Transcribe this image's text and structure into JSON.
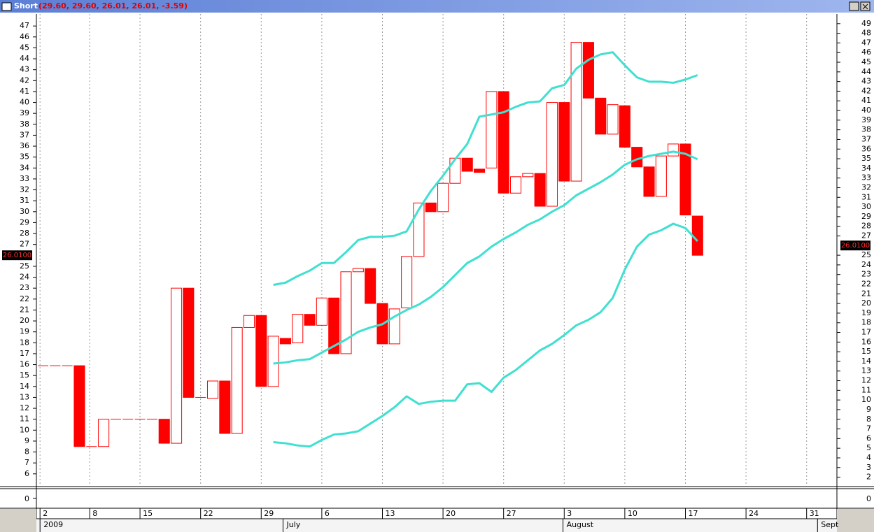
{
  "chart_data": {
    "type": "candlestick",
    "title": "Short",
    "subtitle": "(29.60, 29.60, 26.01, 26.01, -3.59)",
    "open": [
      15.9,
      15.9,
      15.9,
      15.9,
      8.5,
      8.5,
      11,
      11,
      11,
      11,
      11,
      8.8,
      23,
      13,
      12.9,
      14.5,
      9.7,
      19.4,
      20.5,
      14,
      18.4,
      18,
      20.6,
      19.6,
      22.1,
      17,
      24.5,
      24.8,
      21.6,
      17.9,
      21.2,
      25.9,
      30.8,
      30,
      32.6,
      34.9,
      33.9,
      34,
      41,
      31.7,
      33.2,
      33.5,
      30.5,
      40,
      32.8,
      45.5,
      40.4,
      37.1,
      39.7,
      35.9,
      34.1,
      31.4,
      35.1,
      36.2,
      29.6
    ],
    "close": [
      15.9,
      15.9,
      15.9,
      8.5,
      8.5,
      11,
      11,
      11,
      11,
      11,
      8.8,
      23,
      13,
      13,
      14.5,
      9.7,
      19.4,
      20.5,
      14,
      18.6,
      17.9,
      20.6,
      19.6,
      22.1,
      17,
      24.5,
      24.8,
      21.6,
      17.9,
      21.1,
      25.9,
      30.8,
      30,
      32.6,
      34.9,
      33.7,
      33.6,
      41,
      31.7,
      33.2,
      33.5,
      30.5,
      40,
      32.8,
      45.5,
      40.4,
      37.1,
      39.8,
      35.9,
      34.1,
      31.4,
      35.1,
      36.2,
      29.7,
      26.01
    ],
    "up_color": "#ffffff",
    "down_color": "#ff0000",
    "outline_color": "#ff0000",
    "bands": [
      {
        "color": "#40e0d0",
        "values": [
          null,
          null,
          null,
          null,
          null,
          null,
          null,
          null,
          null,
          null,
          null,
          null,
          null,
          null,
          null,
          null,
          null,
          null,
          null,
          23.3,
          23.5,
          24.1,
          24.6,
          25.3,
          25.3,
          26.3,
          27.4,
          27.7,
          27.7,
          27.8,
          28.2,
          30.2,
          31.9,
          33.3,
          34.8,
          36.2,
          38.7,
          38.9,
          39.1,
          39.6,
          40,
          40.1,
          41.3,
          41.6,
          43.1,
          43.9,
          44.4,
          44.6,
          43.4,
          42.3,
          41.9,
          41.9,
          41.8,
          42.1,
          42.5
        ]
      },
      {
        "color": "#40e0d0",
        "values": [
          null,
          null,
          null,
          null,
          null,
          null,
          null,
          null,
          null,
          null,
          null,
          null,
          null,
          null,
          null,
          null,
          null,
          null,
          null,
          16.1,
          16.2,
          16.4,
          16.5,
          17.1,
          17.7,
          18.3,
          19,
          19.4,
          19.7,
          20.4,
          21,
          21.5,
          22.2,
          23.1,
          24.2,
          25.3,
          25.9,
          26.8,
          27.5,
          28.1,
          28.8,
          29.3,
          30,
          30.6,
          31.5,
          32.1,
          32.7,
          33.4,
          34.3,
          34.8,
          35.1,
          35.3,
          35.5,
          35.3,
          34.8
        ]
      },
      {
        "color": "#40e0d0",
        "values": [
          null,
          null,
          null,
          null,
          null,
          null,
          null,
          null,
          null,
          null,
          null,
          null,
          null,
          null,
          null,
          null,
          null,
          null,
          null,
          8.9,
          8.8,
          8.6,
          8.5,
          9.1,
          9.6,
          9.7,
          9.9,
          10.6,
          11.3,
          12.1,
          13.1,
          12.4,
          12.6,
          12.7,
          12.7,
          14.2,
          14.3,
          13.5,
          14.8,
          15.5,
          16.4,
          17.3,
          17.9,
          18.7,
          19.6,
          20.1,
          20.8,
          22.1,
          24.7,
          26.8,
          27.9,
          28.3,
          28.9,
          28.5,
          27.3
        ]
      }
    ],
    "xlim": [
      -0.55,
      65.5
    ],
    "xticks": [
      {
        "value": -0.25,
        "label": "2"
      },
      {
        "value": 3.85,
        "label": "8"
      },
      {
        "value": 8,
        "label": "15"
      },
      {
        "value": 13,
        "label": "22"
      },
      {
        "value": 18,
        "label": "29"
      },
      {
        "value": 23,
        "label": "6"
      },
      {
        "value": 28,
        "label": "13"
      },
      {
        "value": 33,
        "label": "20"
      },
      {
        "value": 38,
        "label": "27"
      },
      {
        "value": 43,
        "label": "3"
      },
      {
        "value": 48,
        "label": "10"
      },
      {
        "value": 53,
        "label": "17"
      },
      {
        "value": 58,
        "label": "24"
      },
      {
        "value": 63,
        "label": "31"
      }
    ],
    "xticks2": [
      {
        "value": -0.25,
        "label": "2009"
      },
      {
        "value": 19.8,
        "label": "July"
      },
      {
        "value": 42.9,
        "label": "August"
      },
      {
        "value": 63.9,
        "label": "Sept"
      }
    ],
    "ylim": [
      4.9,
      48.1
    ],
    "yticks": [
      6,
      7,
      8,
      9,
      10,
      11,
      12,
      13,
      14,
      15,
      16,
      17,
      18,
      19,
      20,
      21,
      22,
      23,
      24,
      25,
      27,
      28,
      29,
      30,
      31,
      32,
      33,
      34,
      35,
      36,
      37,
      38,
      39,
      40,
      41,
      42,
      43,
      44,
      45,
      46,
      47
    ],
    "y2lim": [
      1.1,
      50
    ],
    "y2ticks": [
      2,
      3,
      4,
      5,
      6,
      7,
      8,
      9,
      10,
      11,
      12,
      13,
      14,
      15,
      16,
      17,
      18,
      19,
      20,
      21,
      22,
      23,
      24,
      25,
      27,
      28,
      29,
      30,
      31,
      32,
      33,
      34,
      35,
      36,
      37,
      38,
      39,
      40,
      41,
      42,
      43,
      44,
      45,
      46,
      47,
      48,
      49
    ],
    "last_value": {
      "value": 26.01,
      "label": "26.0100"
    },
    "lower_yticks": [
      0
    ],
    "grid": true
  }
}
